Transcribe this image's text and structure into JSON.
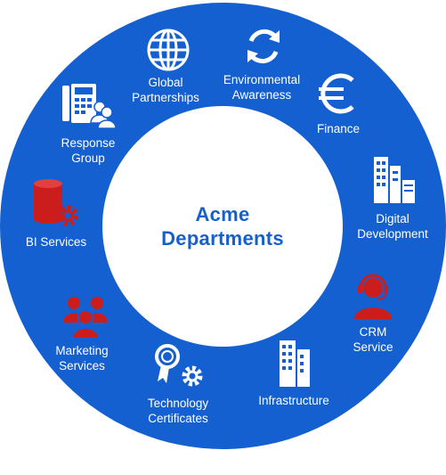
{
  "colors": {
    "ring": "#1560d0",
    "white": "#ffffff",
    "accent": "#cc1d1d",
    "title": "#1560d0"
  },
  "center": {
    "line1": "Acme",
    "line2": "Departments"
  },
  "segments": [
    {
      "id": "global",
      "lines": [
        "Global",
        "Partnerships"
      ],
      "icon": "globe-icon"
    },
    {
      "id": "env",
      "lines": [
        "Environmental",
        "Awareness"
      ],
      "icon": "recycle-icon"
    },
    {
      "id": "finance",
      "lines": [
        "Finance"
      ],
      "icon": "euro-icon"
    },
    {
      "id": "digital",
      "lines": [
        "Digital",
        "Development"
      ],
      "icon": "buildings-server-icon"
    },
    {
      "id": "crm",
      "lines": [
        "CRM",
        "Service"
      ],
      "icon": "headset-agent-icon"
    },
    {
      "id": "infra",
      "lines": [
        "Infrastructure"
      ],
      "icon": "skyscraper-icon"
    },
    {
      "id": "tech",
      "lines": [
        "Technology",
        "Certificates"
      ],
      "icon": "certificate-gear-icon"
    },
    {
      "id": "marketing",
      "lines": [
        "Marketing",
        "Services"
      ],
      "icon": "people-group-icon"
    },
    {
      "id": "bi",
      "lines": [
        "BI Services"
      ],
      "icon": "database-gear-icon"
    },
    {
      "id": "response",
      "lines": [
        "Response",
        "Group"
      ],
      "icon": "phone-users-icon"
    }
  ]
}
